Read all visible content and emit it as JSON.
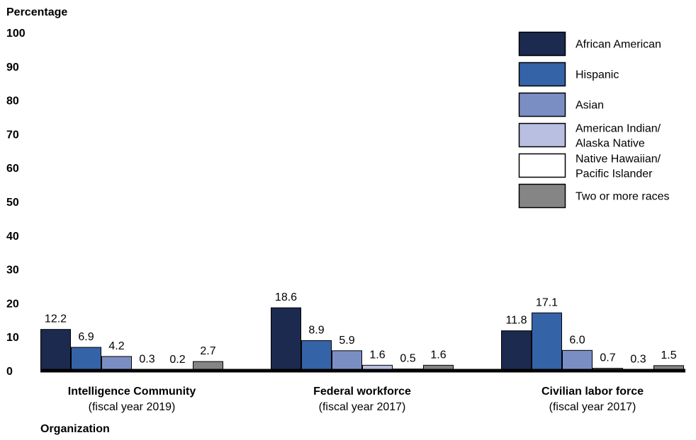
{
  "chart_data": {
    "type": "bar",
    "ylabel": "Percentage",
    "xlabel": "Organization",
    "ylim": [
      0,
      100
    ],
    "yticks": [
      0,
      10,
      20,
      30,
      40,
      50,
      60,
      70,
      80,
      90,
      100
    ],
    "grid": false,
    "legend_position": "top-right",
    "categories": [
      {
        "name": "Intelligence Community",
        "sub": "(fiscal year 2019)"
      },
      {
        "name": "Federal workforce",
        "sub": "(fiscal year 2017)"
      },
      {
        "name": "Civilian labor force",
        "sub": "(fiscal year 2017)"
      }
    ],
    "series": [
      {
        "name": "African American",
        "lines": [
          "African American"
        ],
        "color": "#1b2a4e",
        "values": [
          12.2,
          18.6,
          11.8
        ],
        "labels": [
          "12.2",
          "18.6",
          "11.8"
        ]
      },
      {
        "name": "Hispanic",
        "lines": [
          "Hispanic"
        ],
        "color": "#3563a8",
        "values": [
          6.9,
          8.9,
          17.1
        ],
        "labels": [
          "6.9",
          "8.9",
          "17.1"
        ]
      },
      {
        "name": "Asian",
        "lines": [
          "Asian"
        ],
        "color": "#7b8ec4",
        "values": [
          4.2,
          5.9,
          6.0
        ],
        "labels": [
          "4.2",
          "5.9",
          "6.0"
        ]
      },
      {
        "name": "American Indian/ Alaska Native",
        "lines": [
          "American Indian/",
          "Alaska Native"
        ],
        "color": "#b9bfe0",
        "values": [
          0.3,
          1.6,
          0.7
        ],
        "labels": [
          "0.3",
          "1.6",
          "0.7"
        ]
      },
      {
        "name": "Native Hawaiian/ Pacific Islander",
        "lines": [
          "Native Hawaiian/",
          "Pacific Islander"
        ],
        "color": "#ffffff",
        "values": [
          0.2,
          0.5,
          0.3
        ],
        "labels": [
          "0.2",
          "0.5",
          "0.3"
        ]
      },
      {
        "name": "Two or more races",
        "lines": [
          "Two or more races"
        ],
        "color": "#858585",
        "values": [
          2.7,
          1.6,
          1.5
        ],
        "labels": [
          "2.7",
          "1.6",
          "1.5"
        ]
      }
    ]
  }
}
